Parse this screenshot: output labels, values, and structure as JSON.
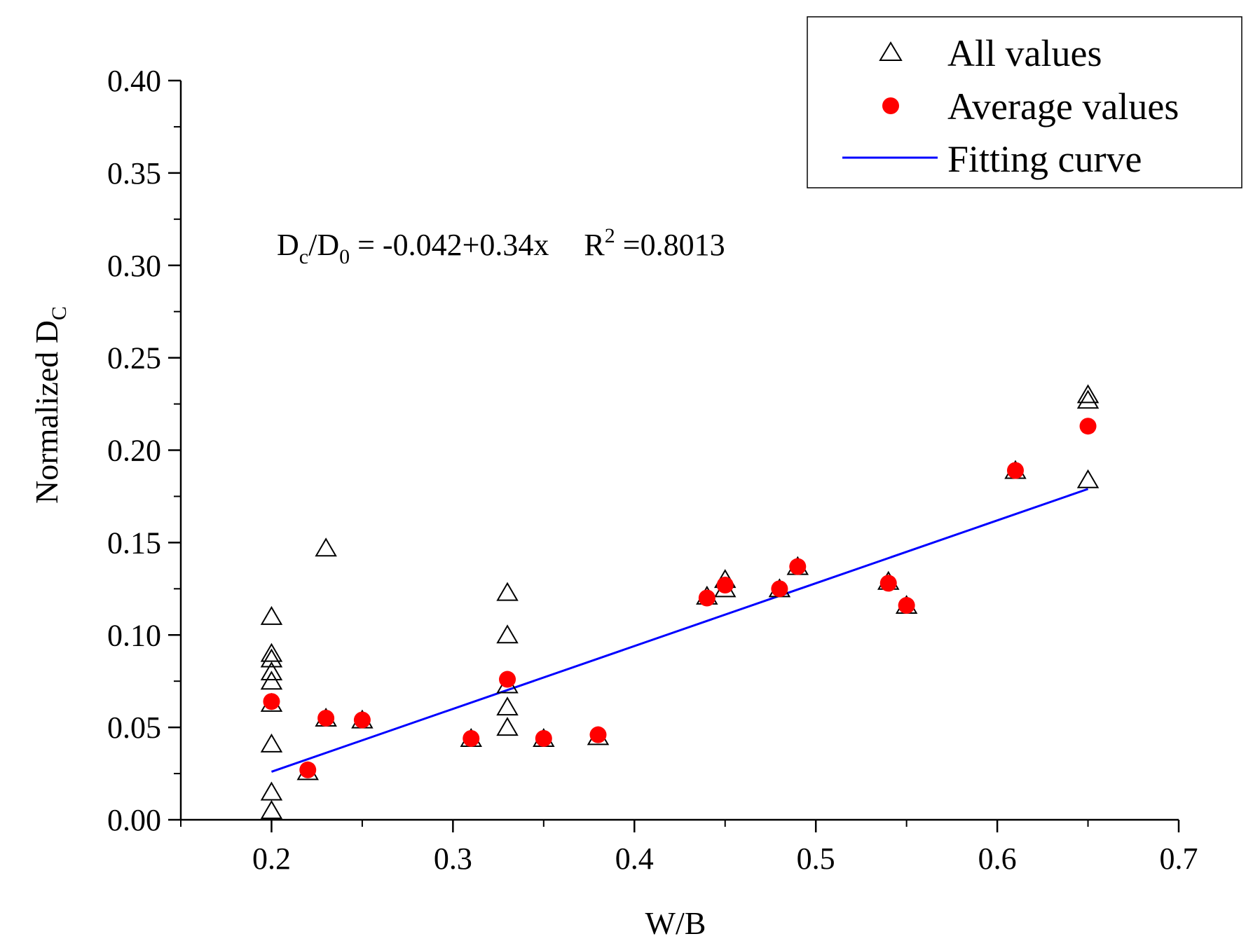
{
  "chart_data": {
    "type": "scatter",
    "xlabel": "W/B",
    "ylabel": "Normalized D",
    "ylabel_subscript": "C",
    "xlim": [
      0.15,
      0.7
    ],
    "ylim": [
      0.0,
      0.4
    ],
    "x_ticks": [
      "0.2",
      "0.3",
      "0.4",
      "0.5",
      "0.6",
      "0.7"
    ],
    "x_tick_values": [
      0.2,
      0.3,
      0.4,
      0.5,
      0.6,
      0.7
    ],
    "y_ticks": [
      "0.00",
      "0.05",
      "0.10",
      "0.15",
      "0.20",
      "0.25",
      "0.30",
      "0.35",
      "0.40"
    ],
    "y_tick_values": [
      0.0,
      0.05,
      0.1,
      0.15,
      0.2,
      0.25,
      0.3,
      0.35,
      0.4
    ],
    "grid": false,
    "legend_position": "top-right",
    "equation": {
      "lhs_D1": "D",
      "lhs_sub1": "c",
      "slash": "/D",
      "lhs_sub2": "0",
      "rhs": " = -0.042+0.34x",
      "r_label": "R",
      "r_sup": "2",
      "r_value": " =0.8013"
    },
    "series": [
      {
        "name": "All values",
        "marker": "open-triangle",
        "color": "#000000",
        "points": [
          [
            0.2,
            0.005
          ],
          [
            0.2,
            0.015
          ],
          [
            0.2,
            0.041
          ],
          [
            0.2,
            0.063
          ],
          [
            0.2,
            0.075
          ],
          [
            0.2,
            0.08
          ],
          [
            0.2,
            0.087
          ],
          [
            0.2,
            0.09
          ],
          [
            0.2,
            0.11
          ],
          [
            0.22,
            0.026
          ],
          [
            0.23,
            0.055
          ],
          [
            0.23,
            0.147
          ],
          [
            0.25,
            0.054
          ],
          [
            0.31,
            0.044
          ],
          [
            0.33,
            0.05
          ],
          [
            0.33,
            0.061
          ],
          [
            0.33,
            0.073
          ],
          [
            0.33,
            0.1
          ],
          [
            0.33,
            0.123
          ],
          [
            0.35,
            0.044
          ],
          [
            0.38,
            0.045
          ],
          [
            0.44,
            0.121
          ],
          [
            0.45,
            0.125
          ],
          [
            0.45,
            0.13
          ],
          [
            0.48,
            0.125
          ],
          [
            0.49,
            0.137
          ],
          [
            0.54,
            0.129
          ],
          [
            0.55,
            0.116
          ],
          [
            0.61,
            0.189
          ],
          [
            0.65,
            0.184
          ],
          [
            0.65,
            0.227
          ],
          [
            0.65,
            0.23
          ]
        ]
      },
      {
        "name": "Average values",
        "marker": "filled-circle",
        "color": "#ff0000",
        "points": [
          [
            0.2,
            0.064
          ],
          [
            0.22,
            0.027
          ],
          [
            0.23,
            0.055
          ],
          [
            0.25,
            0.054
          ],
          [
            0.31,
            0.044
          ],
          [
            0.33,
            0.076
          ],
          [
            0.35,
            0.044
          ],
          [
            0.38,
            0.046
          ],
          [
            0.44,
            0.12
          ],
          [
            0.45,
            0.127
          ],
          [
            0.48,
            0.125
          ],
          [
            0.49,
            0.137
          ],
          [
            0.54,
            0.128
          ],
          [
            0.55,
            0.116
          ],
          [
            0.61,
            0.189
          ],
          [
            0.65,
            0.213
          ]
        ]
      },
      {
        "name": "Fitting curve",
        "marker": "line",
        "color": "#0000ff",
        "intercept": -0.042,
        "slope": 0.34,
        "x_range": [
          0.2,
          0.65
        ]
      }
    ]
  }
}
